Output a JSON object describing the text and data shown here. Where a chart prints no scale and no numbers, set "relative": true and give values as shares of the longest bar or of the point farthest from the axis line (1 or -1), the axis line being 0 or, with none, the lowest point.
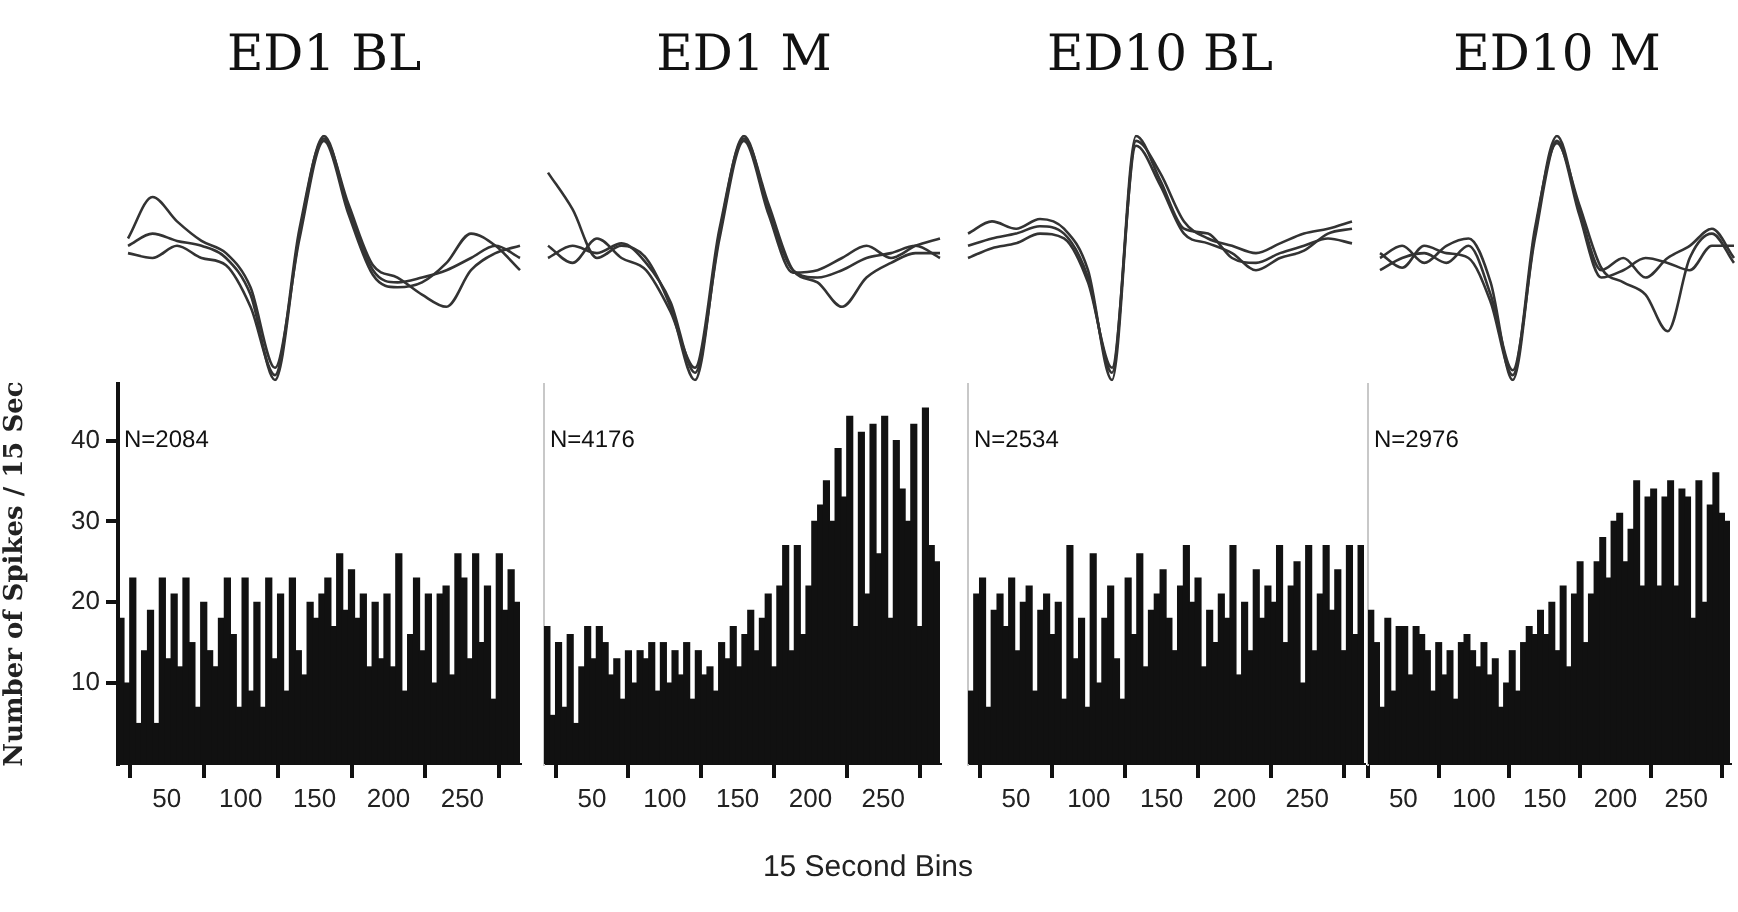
{
  "chart_data": [
    {
      "type": "line",
      "title": "ED1 BL",
      "relative": true,
      "tick_labels": false,
      "categories": [
        null,
        null,
        null,
        null,
        null,
        null,
        null,
        null,
        null,
        null,
        null,
        null,
        null,
        null,
        null,
        null,
        null
      ],
      "series": [
        {
          "color": "#333333",
          "values": [
            0.55,
            0.6,
            0.57,
            0.55,
            0.5,
            0.35,
            0.0,
            0.6,
            1.0,
            0.7,
            0.45,
            0.4,
            0.42,
            0.45,
            0.5,
            0.55,
            0.5
          ]
        },
        {
          "color": "#333333",
          "values": [
            0.58,
            0.75,
            0.65,
            0.57,
            0.52,
            0.38,
            0.05,
            0.58,
            0.98,
            0.68,
            0.43,
            0.38,
            0.4,
            0.48,
            0.6,
            0.55,
            0.45
          ]
        },
        {
          "color": "#333333",
          "values": [
            0.52,
            0.5,
            0.55,
            0.5,
            0.47,
            0.3,
            0.02,
            0.62,
            0.99,
            0.72,
            0.47,
            0.42,
            0.35,
            0.3,
            0.45,
            0.52,
            0.55
          ]
        }
      ]
    },
    {
      "type": "line",
      "title": "ED1 M",
      "relative": true,
      "tick_labels": false,
      "categories": [
        null,
        null,
        null,
        null,
        null,
        null,
        null,
        null,
        null,
        null,
        null,
        null,
        null,
        null,
        null,
        null,
        null
      ],
      "series": [
        {
          "color": "#333333",
          "values": [
            0.85,
            0.7,
            0.5,
            0.55,
            0.5,
            0.3,
            0.0,
            0.6,
            1.0,
            0.7,
            0.45,
            0.42,
            0.45,
            0.5,
            0.52,
            0.55,
            0.5
          ]
        },
        {
          "color": "#333333",
          "values": [
            0.5,
            0.55,
            0.52,
            0.56,
            0.48,
            0.32,
            0.03,
            0.58,
            0.98,
            0.68,
            0.44,
            0.45,
            0.5,
            0.55,
            0.5,
            0.55,
            0.58
          ]
        },
        {
          "color": "#333333",
          "values": [
            0.55,
            0.48,
            0.58,
            0.5,
            0.45,
            0.28,
            0.05,
            0.62,
            0.99,
            0.72,
            0.45,
            0.4,
            0.3,
            0.42,
            0.48,
            0.52,
            0.52
          ]
        }
      ]
    },
    {
      "type": "line",
      "title": "ED10 BL",
      "relative": true,
      "tick_labels": false,
      "categories": [
        null,
        null,
        null,
        null,
        null,
        null,
        null,
        null,
        null,
        null,
        null,
        null,
        null,
        null,
        null,
        null,
        null
      ],
      "series": [
        {
          "color": "#333333",
          "values": [
            0.6,
            0.65,
            0.62,
            0.66,
            0.62,
            0.45,
            0.0,
            0.98,
            0.85,
            0.65,
            0.58,
            0.55,
            0.52,
            0.56,
            0.6,
            0.62,
            0.65
          ]
        },
        {
          "color": "#333333",
          "values": [
            0.55,
            0.58,
            0.6,
            0.63,
            0.6,
            0.42,
            0.03,
            1.0,
            0.82,
            0.62,
            0.6,
            0.5,
            0.48,
            0.52,
            0.55,
            0.58,
            0.56
          ]
        },
        {
          "color": "#333333",
          "values": [
            0.5,
            0.54,
            0.56,
            0.6,
            0.58,
            0.4,
            0.05,
            0.96,
            0.8,
            0.6,
            0.56,
            0.52,
            0.45,
            0.5,
            0.53,
            0.6,
            0.62
          ]
        }
      ]
    },
    {
      "type": "line",
      "title": "ED10 M",
      "relative": true,
      "tick_labels": false,
      "categories": [
        null,
        null,
        null,
        null,
        null,
        null,
        null,
        null,
        null,
        null,
        null,
        null,
        null,
        null,
        null,
        null,
        null
      ],
      "series": [
        {
          "color": "#333333",
          "values": [
            0.5,
            0.55,
            0.48,
            0.55,
            0.58,
            0.4,
            0.0,
            0.6,
            1.0,
            0.7,
            0.45,
            0.5,
            0.42,
            0.5,
            0.55,
            0.62,
            0.5
          ]
        },
        {
          "color": "#333333",
          "values": [
            0.45,
            0.5,
            0.52,
            0.48,
            0.55,
            0.35,
            0.04,
            0.58,
            0.98,
            0.68,
            0.42,
            0.45,
            0.5,
            0.48,
            0.45,
            0.55,
            0.55
          ]
        },
        {
          "color": "#333333",
          "values": [
            0.52,
            0.46,
            0.55,
            0.52,
            0.5,
            0.32,
            0.02,
            0.62,
            0.97,
            0.72,
            0.46,
            0.4,
            0.35,
            0.2,
            0.5,
            0.6,
            0.48
          ]
        }
      ]
    },
    {
      "type": "histogram",
      "ylabel": "Number of Spikes / 15 Sec",
      "annotations": [
        "N=2084"
      ],
      "color": "#111111",
      "xlim": [
        17,
        289
      ],
      "ylim": [
        0,
        47
      ],
      "xticks": [
        50,
        100,
        150,
        200,
        250
      ],
      "yticks": [
        10,
        20,
        30,
        40
      ],
      "bins": [
        17,
        21,
        25,
        29,
        33,
        37,
        41,
        45,
        49,
        53,
        57,
        61,
        65,
        69,
        73,
        77,
        81,
        85,
        89,
        93,
        97,
        101,
        105,
        109,
        113,
        117,
        121,
        125,
        129,
        133,
        137,
        141,
        145,
        149,
        153,
        157,
        161,
        165,
        169,
        173,
        177,
        181,
        185,
        189,
        193,
        197,
        201,
        205,
        209,
        213,
        217,
        221,
        225,
        229,
        233,
        237,
        241,
        245,
        249,
        253,
        257,
        261,
        265,
        269,
        273,
        277,
        281,
        285,
        289
      ],
      "values": [
        18,
        10,
        23,
        5,
        14,
        19,
        5,
        23,
        13,
        21,
        12,
        23,
        15,
        7,
        20,
        14,
        12,
        18,
        23,
        16,
        7,
        23,
        9,
        20,
        7,
        23,
        13,
        21,
        9,
        23,
        14,
        11,
        20,
        18,
        21,
        23,
        17,
        26,
        19,
        24,
        18,
        21,
        12,
        20,
        13,
        21,
        12,
        26,
        9,
        16,
        23,
        14,
        21,
        10,
        21,
        22,
        11,
        26,
        23,
        13,
        26,
        15,
        22,
        8,
        26,
        19,
        24,
        20
      ]
    },
    {
      "type": "histogram",
      "xlabel": "15 Second Bins",
      "annotations": [
        "N=4176"
      ],
      "color": "#111111",
      "tick_labels": "x",
      "xlim": [
        17,
        289
      ],
      "ylim": [
        0,
        47
      ],
      "xticks": [
        50,
        100,
        150,
        200,
        250
      ],
      "yticks": [
        10,
        20,
        30,
        40
      ],
      "bins": [
        17,
        21,
        25,
        29,
        33,
        37,
        41,
        45,
        49,
        53,
        57,
        61,
        65,
        69,
        73,
        77,
        81,
        85,
        89,
        93,
        97,
        101,
        105,
        109,
        113,
        117,
        121,
        125,
        129,
        133,
        137,
        141,
        145,
        149,
        153,
        157,
        161,
        165,
        169,
        173,
        177,
        181,
        185,
        189,
        193,
        197,
        201,
        205,
        209,
        213,
        217,
        221,
        225,
        229,
        233,
        237,
        241,
        245,
        249,
        253,
        257,
        261,
        265,
        269,
        273,
        277,
        281,
        285,
        289
      ],
      "values": [
        17,
        6,
        15,
        7,
        16,
        5,
        12,
        17,
        13,
        17,
        15,
        11,
        13,
        8,
        14,
        10,
        14,
        13,
        15,
        9,
        15,
        10,
        14,
        11,
        15,
        8,
        14,
        11,
        12,
        9,
        15,
        13,
        17,
        12,
        16,
        19,
        14,
        18,
        21,
        12,
        22,
        27,
        14,
        27,
        16,
        22,
        30,
        32,
        35,
        30,
        39,
        33,
        43,
        17,
        41,
        21,
        42,
        26,
        43,
        18,
        40,
        34,
        30,
        42,
        17,
        44,
        27,
        25
      ]
    },
    {
      "type": "histogram",
      "annotations": [
        "N=2534"
      ],
      "color": "#111111",
      "tick_labels": "x",
      "xlim": [
        17,
        289
      ],
      "ylim": [
        0,
        47
      ],
      "xticks": [
        50,
        100,
        150,
        200,
        250
      ],
      "yticks": [
        10,
        20,
        30,
        40
      ],
      "bins": [
        17,
        21,
        25,
        29,
        33,
        37,
        41,
        45,
        49,
        53,
        57,
        61,
        65,
        69,
        73,
        77,
        81,
        85,
        89,
        93,
        97,
        101,
        105,
        109,
        113,
        117,
        121,
        125,
        129,
        133,
        137,
        141,
        145,
        149,
        153,
        157,
        161,
        165,
        169,
        173,
        177,
        181,
        185,
        189,
        193,
        197,
        201,
        205,
        209,
        213,
        217,
        221,
        225,
        229,
        233,
        237,
        241,
        245,
        249,
        253,
        257,
        261,
        265,
        269,
        273,
        277,
        281,
        285,
        289
      ],
      "values": [
        9,
        21,
        23,
        7,
        19,
        21,
        17,
        23,
        14,
        20,
        22,
        9,
        19,
        21,
        16,
        20,
        8,
        27,
        13,
        18,
        7,
        26,
        10,
        18,
        22,
        13,
        8,
        23,
        16,
        26,
        12,
        19,
        21,
        24,
        18,
        14,
        22,
        27,
        20,
        23,
        12,
        19,
        15,
        21,
        18,
        27,
        11,
        20,
        14,
        24,
        18,
        22,
        20,
        27,
        15,
        22,
        25,
        10,
        27,
        14,
        21,
        27,
        19,
        24,
        14,
        27,
        16,
        27
      ]
    },
    {
      "type": "histogram",
      "annotations": [
        "N=2976"
      ],
      "color": "#111111",
      "tick_labels": "x",
      "xlim": [
        25,
        281
      ],
      "ylim": [
        0,
        47
      ],
      "xticks": [
        50,
        100,
        150,
        200,
        250
      ],
      "yticks": [
        10,
        20,
        30,
        40
      ],
      "bins": [
        25,
        29,
        33,
        37,
        41,
        45,
        49,
        53,
        57,
        61,
        65,
        69,
        73,
        77,
        81,
        85,
        89,
        93,
        97,
        101,
        105,
        109,
        113,
        117,
        121,
        125,
        129,
        133,
        137,
        141,
        145,
        149,
        153,
        157,
        161,
        165,
        169,
        173,
        177,
        181,
        185,
        189,
        193,
        197,
        201,
        205,
        209,
        213,
        217,
        221,
        225,
        229,
        233,
        237,
        241,
        245,
        249,
        253,
        257,
        261,
        265,
        269,
        273,
        277,
        281
      ],
      "values": [
        19,
        15,
        7,
        18,
        9,
        17,
        17,
        11,
        17,
        16,
        14,
        9,
        15,
        11,
        14,
        8,
        15,
        16,
        14,
        12,
        15,
        11,
        13,
        7,
        10,
        14,
        9,
        15,
        17,
        16,
        19,
        16,
        20,
        14,
        22,
        12,
        21,
        25,
        15,
        21,
        25,
        28,
        23,
        30,
        31,
        25,
        29,
        35,
        22,
        33,
        34,
        22,
        33,
        35,
        22,
        34,
        33,
        18,
        35,
        20,
        32,
        36,
        31,
        30
      ]
    }
  ]
}
